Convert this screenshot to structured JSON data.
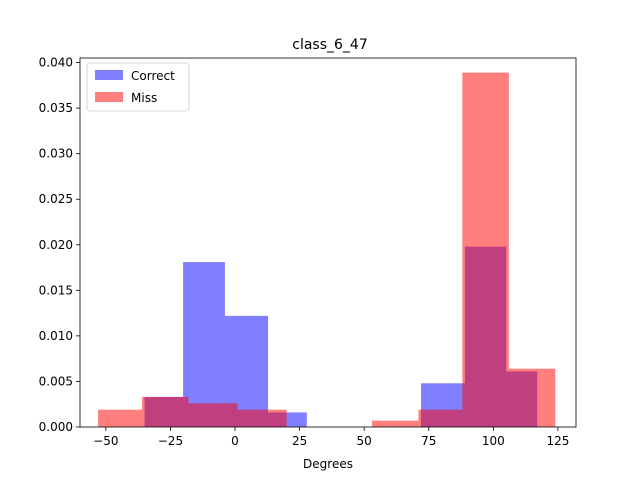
{
  "chart_data": {
    "type": "bar",
    "title": "class_6_47",
    "xlabel": "Degrees",
    "ylabel": "",
    "xlim": [
      -60,
      132
    ],
    "ylim": [
      0,
      0.0405
    ],
    "x_ticks": [
      -50,
      -25,
      0,
      25,
      50,
      75,
      100,
      125
    ],
    "x_tick_labels": [
      "−50",
      "−25",
      "0",
      "25",
      "50",
      "75",
      "100",
      "125"
    ],
    "y_ticks": [
      0.0,
      0.005,
      0.01,
      0.015,
      0.02,
      0.025,
      0.03,
      0.035,
      0.04
    ],
    "y_tick_labels": [
      "0.000",
      "0.005",
      "0.010",
      "0.015",
      "0.020",
      "0.025",
      "0.030",
      "0.035",
      "0.040"
    ],
    "grid": false,
    "legend_position": "upper-left",
    "series": [
      {
        "name": "Correct",
        "color": "#0000ff",
        "opacity": 0.5,
        "bins": [
          {
            "x0": -35.0,
            "x1": -20.1,
            "value": 0.0033
          },
          {
            "x0": -20.1,
            "x1": -3.9,
            "value": 0.0181
          },
          {
            "x0": -3.9,
            "x1": 12.8,
            "value": 0.0122
          },
          {
            "x0": 12.8,
            "x1": 27.8,
            "value": 0.0016
          },
          {
            "x0": 72.0,
            "x1": 89.0,
            "value": 0.0048
          },
          {
            "x0": 89.0,
            "x1": 105.0,
            "value": 0.0198
          },
          {
            "x0": 105.0,
            "x1": 117.0,
            "value": 0.0061
          }
        ]
      },
      {
        "name": "Miss",
        "color": "#ff0000",
        "opacity": 0.5,
        "bins": [
          {
            "x0": -53.0,
            "x1": -36.0,
            "value": 0.0019
          },
          {
            "x0": -36.0,
            "x1": -18.0,
            "value": 0.0033
          },
          {
            "x0": -18.0,
            "x1": 1.0,
            "value": 0.0026
          },
          {
            "x0": 1.0,
            "x1": 20.0,
            "value": 0.0019
          },
          {
            "x0": 53.0,
            "x1": 71.0,
            "value": 0.0007
          },
          {
            "x0": 71.0,
            "x1": 88.0,
            "value": 0.0019
          },
          {
            "x0": 88.0,
            "x1": 106.0,
            "value": 0.0389
          },
          {
            "x0": 106.0,
            "x1": 124.0,
            "value": 0.0064
          }
        ]
      }
    ]
  }
}
